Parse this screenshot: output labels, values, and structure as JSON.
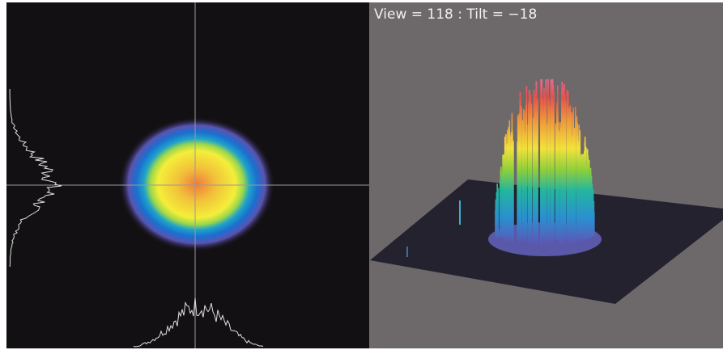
{
  "overlay_text": "View = 118 : Tilt = −18"
}
